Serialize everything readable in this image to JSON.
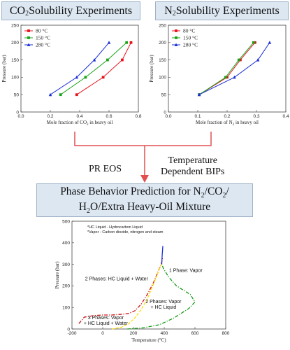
{
  "headers": {
    "co2": {
      "pre": "CO",
      "sub": "2",
      "post": " Solubility Experiments"
    },
    "n2": {
      "pre": "N",
      "sub": "2",
      "post": " Solubility Experiments"
    },
    "phase": {
      "line1_pre": "Phase Behavior Prediction for N",
      "line1_sub1": "2",
      "line1_mid": "/CO",
      "line1_sub2": "2",
      "line1_post": "/",
      "line2_pre": "H",
      "line2_sub": "2",
      "line2_post": "O/Extra Heavy-Oil Mixture"
    }
  },
  "flow": {
    "eos_label": "PR EOS",
    "bip_label_line1": "Temperature",
    "bip_label_line2": "Dependent BIPs"
  },
  "colors": {
    "s80": "#e8101a",
    "s150": "#17a317",
    "s280": "#1a2fd8",
    "flow_line": "#e05050",
    "header_bg": "#dde7f2"
  },
  "chart_data": [
    {
      "type": "line",
      "ylabel": "Pressure (bar)",
      "xlabel": {
        "pre": "Mole fraction of CO",
        "sub": "2",
        "post": " in heavy oil"
      },
      "xlim": [
        0,
        0.8
      ],
      "ylim": [
        0,
        250
      ],
      "xticks": [
        "0.0",
        "0.2",
        "0.4",
        "0.6",
        "0.8"
      ],
      "yticks": [
        "0",
        "50",
        "100",
        "150",
        "200",
        "250"
      ],
      "grid": false,
      "legend_position": "top-left",
      "series": [
        {
          "name": "80 °C",
          "marker": "square",
          "color": "#e8101a",
          "x": [
            0.38,
            0.56,
            0.69,
            0.75
          ],
          "y": [
            50,
            100,
            150,
            200
          ]
        },
        {
          "name": "150 °C",
          "marker": "square",
          "color": "#17a317",
          "x": [
            0.27,
            0.44,
            0.59,
            0.72
          ],
          "y": [
            50,
            100,
            150,
            200
          ]
        },
        {
          "name": "280 °C",
          "marker": "triangle",
          "color": "#1a2fd8",
          "x": [
            0.2,
            0.38,
            0.5,
            0.6
          ],
          "y": [
            50,
            100,
            150,
            200
          ]
        }
      ]
    },
    {
      "type": "line",
      "ylabel": "Pressure (bar)",
      "xlabel": {
        "pre": "Mole fraction of N",
        "sub": "2",
        "post": " in heavy oil"
      },
      "xlim": [
        0,
        0.4
      ],
      "ylim": [
        0,
        250
      ],
      "xticks": [
        "0.0",
        "0.1",
        "0.2",
        "0.3",
        "0.4"
      ],
      "yticks": [
        "0",
        "50",
        "100",
        "150",
        "200",
        "250"
      ],
      "grid": false,
      "legend_position": "top-left",
      "series": [
        {
          "name": "80 °C",
          "marker": "square",
          "color": "#e8101a",
          "x": [
            0.105,
            0.2,
            0.245,
            0.295
          ],
          "y": [
            50,
            100,
            150,
            200
          ]
        },
        {
          "name": "150 °C",
          "marker": "square",
          "color": "#17a317",
          "x": [
            0.105,
            0.195,
            0.24,
            0.29
          ],
          "y": [
            50,
            100,
            150,
            200
          ]
        },
        {
          "name": "280 °C",
          "marker": "triangle",
          "color": "#1a2fd8",
          "x": [
            0.105,
            0.225,
            0.305,
            0.345
          ],
          "y": [
            50,
            100,
            150,
            200
          ]
        }
      ]
    },
    {
      "type": "line",
      "ylabel": "Pressure (bar)",
      "xlabel": "Temperature (°C)",
      "xlim": [
        -200,
        800
      ],
      "ylim": [
        0,
        500
      ],
      "xticks": [
        "-200",
        "0",
        "200",
        "400",
        "600",
        "800"
      ],
      "yticks": [
        "0",
        "100",
        "200",
        "300",
        "400",
        "500"
      ],
      "grid": false,
      "notes": [
        "*HC Liquid - Hydrocarbon Liquid",
        "*Vapor - Carbon dioxide, nitrogen and steam"
      ],
      "region_labels": [
        {
          "lines": [
            "2 Phases: HC Liquid + Water"
          ],
          "x": 90,
          "y": 225
        },
        {
          "lines": [
            "1 Phase: Vapor"
          ],
          "x": 540,
          "y": 265
        },
        {
          "lines": [
            "2 Phases: Vapor",
            "+ HC Liquid"
          ],
          "x": 395,
          "y": 120
        },
        {
          "lines": [
            "3 Phases: Vapor",
            "+ HC Liquid + Water"
          ],
          "x": 20,
          "y": 45
        }
      ],
      "curves": [
        {
          "style": "dashdot",
          "color": "#cc1111",
          "x": [
            -155,
            -120,
            -60,
            0,
            60,
            120,
            170,
            210,
            250,
            290,
            330,
            360,
            380,
            390
          ],
          "y": [
            25,
            55,
            62,
            65,
            65,
            68,
            72,
            85,
            115,
            160,
            215,
            265,
            300,
            330
          ]
        },
        {
          "style": "dashed",
          "color": "#ffe000",
          "x": [
            60,
            120,
            170,
            210,
            250,
            290,
            320,
            345,
            365,
            375,
            380
          ],
          "y": [
            0,
            8,
            25,
            52,
            90,
            140,
            190,
            235,
            270,
            290,
            300
          ]
        },
        {
          "style": "dashdot",
          "color": "#139913",
          "x": [
            160,
            260,
            370,
            460,
            560,
            600,
            570,
            480,
            430,
            395,
            385
          ],
          "y": [
            0,
            5,
            20,
            50,
            95,
            125,
            160,
            200,
            240,
            280,
            300
          ]
        },
        {
          "style": "solid",
          "color": "#1a2fd8",
          "x": [
            384,
            385,
            387,
            389,
            391
          ],
          "y": [
            300,
            320,
            345,
            365,
            385
          ]
        }
      ]
    }
  ]
}
